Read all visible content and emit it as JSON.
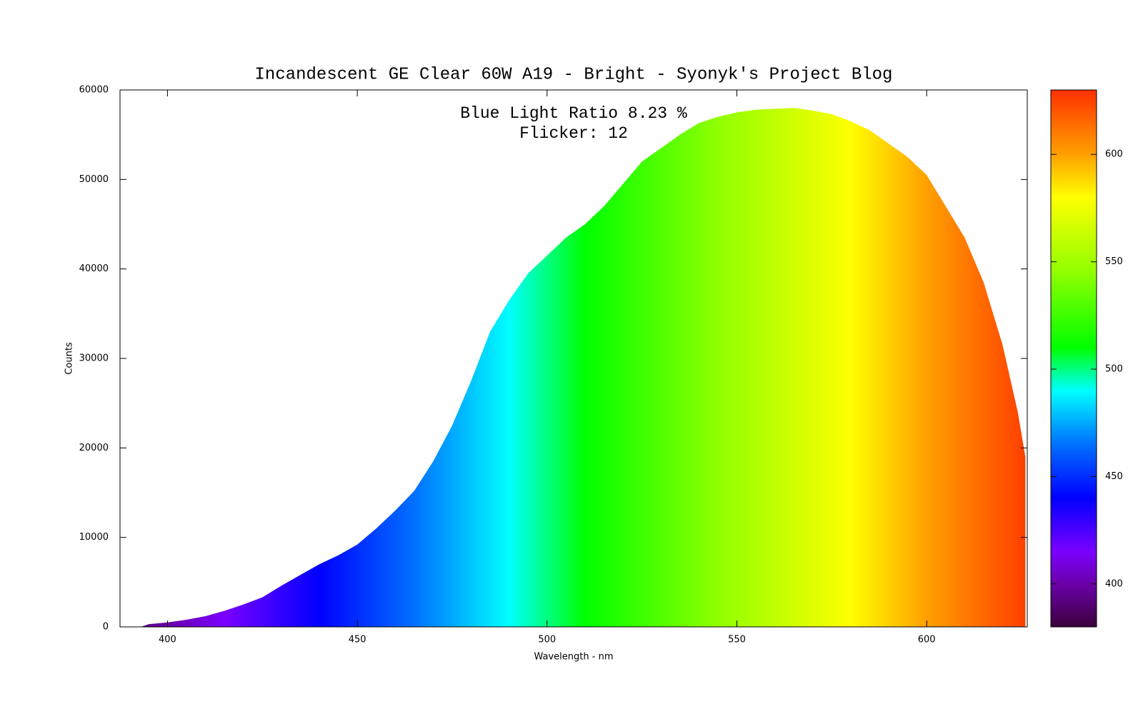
{
  "chart_data": {
    "type": "area",
    "title": "Incandescent GE Clear 60W A19 - Bright - Syonyk's Project Blog",
    "annotations": [
      "Blue Light Ratio 8.23 %",
      "Flicker: 12"
    ],
    "x_label": "Wavelength - nm",
    "y_label": "Counts",
    "x": [
      393,
      395,
      400,
      405,
      410,
      415,
      420,
      425,
      430,
      435,
      440,
      445,
      450,
      455,
      460,
      465,
      470,
      475,
      480,
      485,
      490,
      495,
      500,
      505,
      510,
      515,
      520,
      525,
      530,
      535,
      540,
      545,
      550,
      555,
      560,
      565,
      570,
      575,
      580,
      585,
      590,
      595,
      600,
      605,
      610,
      615,
      620,
      624,
      626
    ],
    "values": [
      0,
      300,
      500,
      800,
      1200,
      1800,
      2500,
      3300,
      4600,
      5800,
      7000,
      8000,
      9200,
      11000,
      13000,
      15200,
      18500,
      22500,
      27500,
      33000,
      36500,
      39500,
      41500,
      43500,
      45000,
      47000,
      49500,
      52000,
      53500,
      55000,
      56300,
      57000,
      57500,
      57800,
      57900,
      58000,
      57700,
      57300,
      56500,
      55500,
      54000,
      52500,
      50500,
      47000,
      43500,
      38500,
      31500,
      24000,
      19000
    ],
    "xlim": [
      387.5,
      626.5
    ],
    "xticks": [
      400,
      450,
      500,
      550,
      600
    ],
    "ylim": [
      0,
      60000
    ],
    "yticks": [
      0,
      10000,
      20000,
      30000,
      40000,
      50000,
      60000
    ],
    "clim": [
      380,
      630
    ],
    "cticks": [
      400,
      450,
      500,
      550,
      600
    ],
    "colormap": [
      {
        "value": 380,
        "color": "#3c003c"
      },
      {
        "value": 400,
        "color": "#6a00a8"
      },
      {
        "value": 415,
        "color": "#7a00ff"
      },
      {
        "value": 440,
        "color": "#0000ff"
      },
      {
        "value": 465,
        "color": "#0070ff"
      },
      {
        "value": 490,
        "color": "#00ffff"
      },
      {
        "value": 510,
        "color": "#00ff00"
      },
      {
        "value": 545,
        "color": "#90ff00"
      },
      {
        "value": 580,
        "color": "#ffff00"
      },
      {
        "value": 600,
        "color": "#ffa000"
      },
      {
        "value": 630,
        "color": "#ff3000"
      }
    ]
  }
}
